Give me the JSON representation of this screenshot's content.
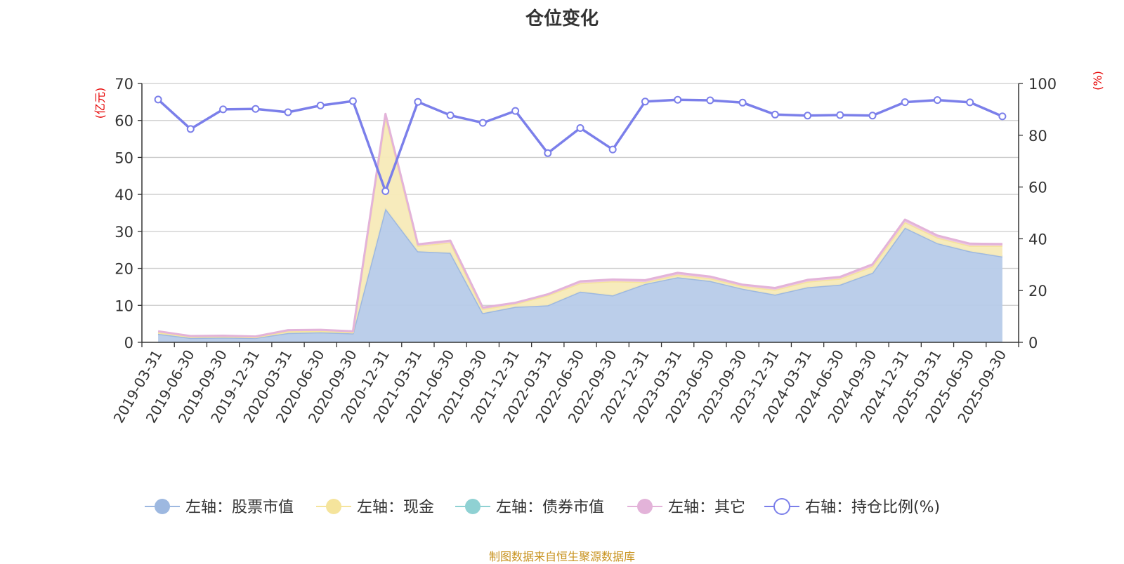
{
  "chart_data": {
    "type": "area",
    "title": "仓位变化",
    "categories": [
      "2019-03-31",
      "2019-06-30",
      "2019-09-30",
      "2019-12-31",
      "2020-03-31",
      "2020-06-30",
      "2020-09-30",
      "2020-12-31",
      "2021-03-31",
      "2021-06-30",
      "2021-09-30",
      "2021-12-31",
      "2022-03-31",
      "2022-06-30",
      "2022-09-30",
      "2022-12-31",
      "2023-03-31",
      "2023-06-30",
      "2023-09-30",
      "2023-12-31",
      "2024-03-31",
      "2024-06-30",
      "2024-09-30",
      "2024-12-31",
      "2025-03-31",
      "2025-06-30",
      "2025-09-30"
    ],
    "left_axis": {
      "unit_label": "(亿元)",
      "ylim": [
        0,
        70
      ],
      "ticks": [
        0,
        10,
        20,
        30,
        40,
        50,
        60,
        70
      ]
    },
    "right_axis": {
      "unit_label": "(%)",
      "ylim": [
        0,
        100
      ],
      "ticks": [
        0,
        20,
        40,
        60,
        80,
        100
      ]
    },
    "series": [
      {
        "name": "左轴：股票市值",
        "axis": "left",
        "stack": true,
        "color": "#9db8e0",
        "fill": "#b7cbe9",
        "values": [
          2.3,
          1.2,
          1.3,
          1.2,
          2.5,
          2.7,
          2.4,
          36.2,
          24.6,
          24.2,
          7.9,
          9.6,
          10.0,
          13.7,
          12.7,
          15.8,
          17.6,
          16.6,
          14.5,
          12.9,
          14.9,
          15.6,
          18.8,
          31.0,
          26.8,
          24.6,
          23.2
        ]
      },
      {
        "name": "左轴：现金",
        "axis": "left",
        "stack": true,
        "color": "#f5e49c",
        "fill": "#f7eab8",
        "values": [
          0.4,
          0.3,
          0.3,
          0.2,
          0.5,
          0.4,
          0.3,
          25.0,
          1.5,
          2.8,
          1.1,
          0.8,
          2.7,
          2.3,
          3.8,
          0.5,
          0.7,
          0.7,
          0.7,
          1.3,
          1.5,
          1.6,
          1.7,
          1.5,
          1.5,
          1.5,
          2.9
        ]
      },
      {
        "name": "左轴：债券市值",
        "axis": "left",
        "stack": true,
        "color": "#8fd1d3",
        "fill": "#a9dcdd",
        "values": [
          0,
          0,
          0,
          0,
          0,
          0,
          0,
          0,
          0,
          0,
          0,
          0,
          0,
          0,
          0,
          0,
          0,
          0,
          0,
          0,
          0,
          0,
          0,
          0,
          0,
          0,
          0
        ]
      },
      {
        "name": "左轴：其它",
        "axis": "left",
        "stack": true,
        "color": "#e3b3d9",
        "fill": "#edc6e4",
        "values": [
          0.3,
          0.2,
          0.2,
          0.2,
          0.3,
          0.3,
          0.3,
          0.6,
          0.4,
          0.5,
          0.4,
          0.3,
          0.3,
          0.5,
          0.5,
          0.5,
          0.5,
          0.5,
          0.4,
          0.5,
          0.5,
          0.5,
          0.6,
          0.7,
          0.6,
          0.6,
          0.5
        ]
      },
      {
        "name": "右轴：持仓比例(%)",
        "axis": "right",
        "type": "line",
        "color": "#7b7fea",
        "values": [
          93.8,
          82.4,
          90.0,
          90.2,
          88.9,
          91.5,
          93.2,
          58.4,
          92.9,
          87.7,
          84.8,
          89.4,
          73.1,
          82.8,
          74.5,
          93.0,
          93.7,
          93.5,
          92.6,
          88.0,
          87.6,
          87.8,
          87.6,
          92.8,
          93.6,
          92.7,
          87.3
        ]
      }
    ]
  },
  "footer": "制图数据来自恒生聚源数据库"
}
